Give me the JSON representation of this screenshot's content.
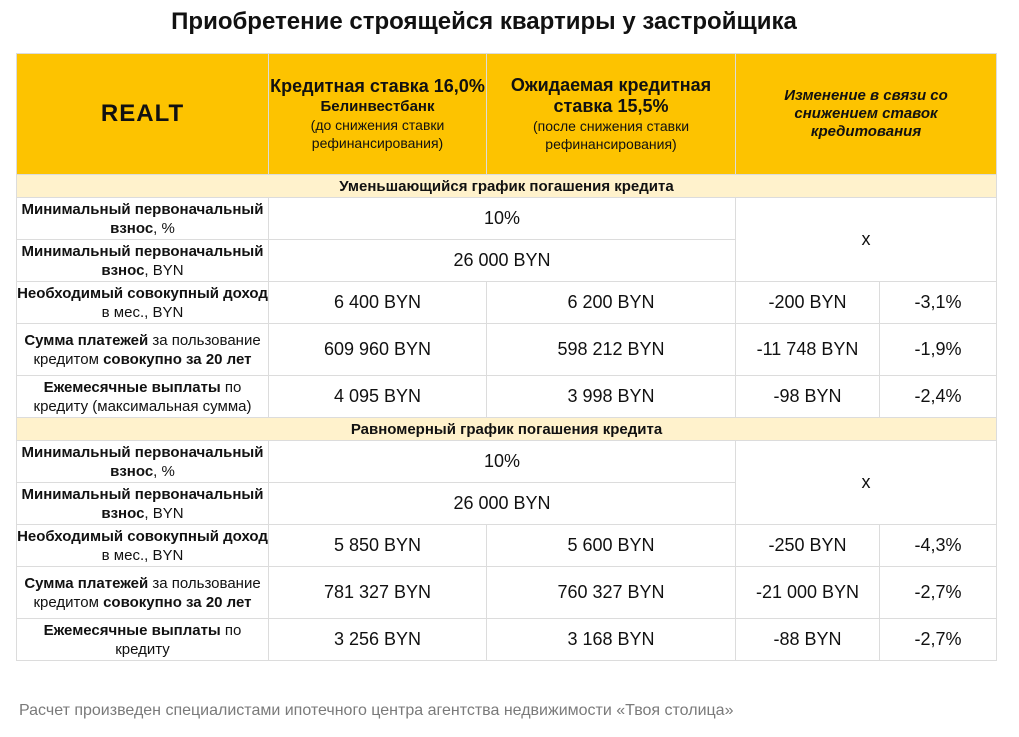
{
  "title": "Приобретение строящейся квартиры у застройщика",
  "logo": "REALT",
  "header": {
    "col1": {
      "line1": "Кредитная ставка 16,0%",
      "bank": "Белинвестбанк",
      "note": "(до снижения ставки рефинансирования)"
    },
    "col2": {
      "line1": "Ожидаемая кредитная ставка 15,5%",
      "note": "(после снижения ставки рефинансирования)"
    },
    "col3": "Изменение в связи со снижением ставок кредитования"
  },
  "sections": [
    {
      "title": "Уменьшающийся график погашения кредита",
      "down_pct": {
        "bold": "Минимальный первоначальный взнос",
        "rest": ", %",
        "value": "10%"
      },
      "down_byn": {
        "bold": "Минимальный первоначальный взнос",
        "rest": ", BYN",
        "value": "26 000 BYN"
      },
      "change_na": "х",
      "rows": [
        {
          "bold1": "Необходимый совокупный доход",
          "rest1": " в мес., BYN",
          "bold2": "",
          "before": "6 400 BYN",
          "after": "6 200 BYN",
          "diff": "-200 BYN",
          "pct": "-3,1%"
        },
        {
          "bold1": "Сумма платежей",
          "rest1": " за пользование кредитом ",
          "bold2": "совокупно за 20 лет",
          "before": "609 960 BYN",
          "after": "598 212 BYN",
          "diff": "-11 748 BYN",
          "pct": "-1,9%"
        },
        {
          "bold1": "Ежемесячные выплаты",
          "rest1": " по кредиту (максимальная сумма)",
          "bold2": "",
          "before": "4 095 BYN",
          "after": "3 998 BYN",
          "diff": "-98 BYN",
          "pct": "-2,4%"
        }
      ]
    },
    {
      "title": "Равномерный график погашения кредита",
      "down_pct": {
        "bold": "Минимальный первоначальный взнос",
        "rest": ", %",
        "value": "10%"
      },
      "down_byn": {
        "bold": "Минимальный первоначальный взнос",
        "rest": ", BYN",
        "value": "26 000 BYN"
      },
      "change_na": "х",
      "rows": [
        {
          "bold1": "Необходимый совокупный доход",
          "rest1": " в мес., BYN",
          "bold2": "",
          "before": "5 850 BYN",
          "after": "5 600 BYN",
          "diff": "-250 BYN",
          "pct": "-4,3%"
        },
        {
          "bold1": "Сумма платежей",
          "rest1": " за пользование кредитом ",
          "bold2": "совокупно за 20 лет",
          "before": "781 327 BYN",
          "after": "760 327 BYN",
          "diff": "-21 000 BYN",
          "pct": "-2,7%"
        },
        {
          "bold1": "Ежемесячные выплаты",
          "rest1": " по кредиту",
          "bold2": "",
          "before": "3 256 BYN",
          "after": "3 168 BYN",
          "diff": "-88 BYN",
          "pct": "-2,7%"
        }
      ]
    }
  ],
  "footer": "Расчет произведен специалистами ипотечного центра агентства недвижимости «Твоя столица»",
  "colors": {
    "header_bg": "#fdc300",
    "section_bg": "#fff2cc",
    "border": "#dcdcdc",
    "footer_text": "#7a7a7a"
  }
}
